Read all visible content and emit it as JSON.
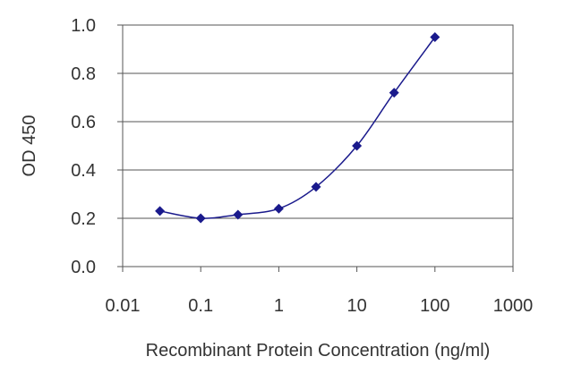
{
  "chart_data": {
    "type": "scatter",
    "title": "",
    "xlabel": "Recombinant Protein Concentration (ng/ml)",
    "ylabel": "OD 450",
    "x_scale": "log",
    "xlim": [
      0.01,
      1000
    ],
    "ylim": [
      0.0,
      1.0
    ],
    "x_ticks": [
      0.01,
      0.1,
      1,
      10,
      100,
      1000
    ],
    "x_tick_labels": [
      "0.01",
      "0.1",
      "1",
      "10",
      "100",
      "1000"
    ],
    "y_ticks": [
      0.0,
      0.2,
      0.4,
      0.6,
      0.8,
      1.0
    ],
    "y_tick_labels": [
      "0.0",
      "0.2",
      "0.4",
      "0.6",
      "0.8",
      "1.0"
    ],
    "grid": "horizontal",
    "legend": "none",
    "series": [
      {
        "x": [
          0.03,
          0.1,
          0.3,
          1,
          3,
          10,
          30,
          100
        ],
        "y": [
          0.23,
          0.2,
          0.215,
          0.24,
          0.33,
          0.5,
          0.72,
          0.95
        ],
        "color": "#1a1a8c",
        "marker": "diamond",
        "fit_line": true
      }
    ]
  }
}
